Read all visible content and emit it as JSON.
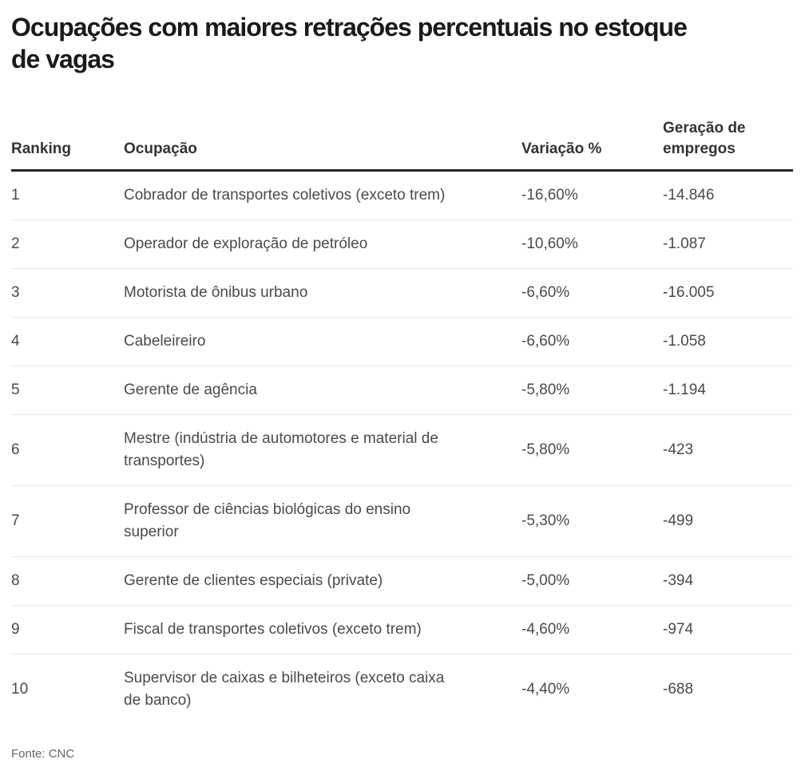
{
  "title": "Ocupações com maiores retrações percentuais no estoque\nde vagas",
  "table": {
    "headers": {
      "ranking": "Ranking",
      "ocupacao": "Ocupação",
      "variacao": "Variação %",
      "geracao": "Geração de\nempregos"
    },
    "rows": [
      {
        "ranking": "1",
        "ocupacao": "Cobrador de transportes coletivos (exceto trem)",
        "variacao": "-16,60%",
        "geracao": "-14.846"
      },
      {
        "ranking": "2",
        "ocupacao": "Operador de exploração de petróleo",
        "variacao": "-10,60%",
        "geracao": "-1.087"
      },
      {
        "ranking": "3",
        "ocupacao": "Motorista de ônibus urbano",
        "variacao": "-6,60%",
        "geracao": "-16.005"
      },
      {
        "ranking": "4",
        "ocupacao": "Cabeleireiro",
        "variacao": "-6,60%",
        "geracao": "-1.058"
      },
      {
        "ranking": "5",
        "ocupacao": "Gerente de agência",
        "variacao": "-5,80%",
        "geracao": "-1.194"
      },
      {
        "ranking": "6",
        "ocupacao": "Mestre (indústria de automotores e material de\ntransportes)",
        "variacao": "-5,80%",
        "geracao": "-423"
      },
      {
        "ranking": "7",
        "ocupacao": "Professor de ciências biológicas do ensino\nsuperior",
        "variacao": "-5,30%",
        "geracao": "-499"
      },
      {
        "ranking": "8",
        "ocupacao": "Gerente de clientes especiais (private)",
        "variacao": "-5,00%",
        "geracao": "-394"
      },
      {
        "ranking": "9",
        "ocupacao": "Fiscal de transportes coletivos (exceto trem)",
        "variacao": "-4,60%",
        "geracao": "-974"
      },
      {
        "ranking": "10",
        "ocupacao": "Supervisor de caixas e bilheteiros (exceto caixa\nde banco)",
        "variacao": "-4,40%",
        "geracao": "-688"
      }
    ]
  },
  "footer": {
    "source": "Fonte: CNC"
  },
  "colors": {
    "title_text": "#1a1a1a",
    "header_text": "#333333",
    "body_text": "#4a4a4a",
    "source_text": "#666666",
    "header_rule": "#262626",
    "row_separator": "#e8e8e8",
    "background": "#ffffff"
  },
  "chart_data": {
    "type": "table",
    "title": "Ocupações com maiores retrações percentuais no estoque de vagas",
    "columns": [
      "Ranking",
      "Ocupação",
      "Variação %",
      "Geração de empregos"
    ],
    "rows": [
      [
        1,
        "Cobrador de transportes coletivos (exceto trem)",
        -16.6,
        -14846
      ],
      [
        2,
        "Operador de exploração de petróleo",
        -10.6,
        -1087
      ],
      [
        3,
        "Motorista de ônibus urbano",
        -6.6,
        -16005
      ],
      [
        4,
        "Cabeleireiro",
        -6.6,
        -1058
      ],
      [
        5,
        "Gerente de agência",
        -5.8,
        -1194
      ],
      [
        6,
        "Mestre (indústria de automotores e material de transportes)",
        -5.8,
        -423
      ],
      [
        7,
        "Professor de ciências biológicas do ensino superior",
        -5.3,
        -499
      ],
      [
        8,
        "Gerente de clientes especiais (private)",
        -5.0,
        -394
      ],
      [
        9,
        "Fiscal de transportes coletivos (exceto trem)",
        -4.6,
        -974
      ],
      [
        10,
        "Supervisor de caixas e bilheteiros (exceto caixa de banco)",
        -4.4,
        -688
      ]
    ],
    "source": "Fonte: CNC"
  }
}
